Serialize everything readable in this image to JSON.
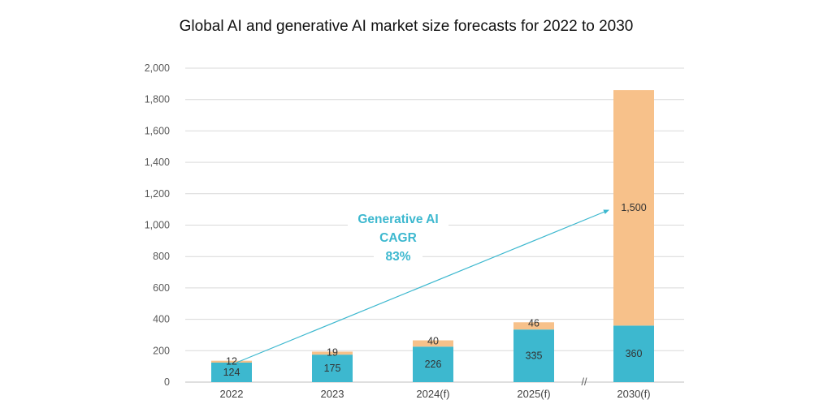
{
  "chart_data": {
    "type": "bar",
    "stacked": true,
    "title": "Global AI and generative AI market size forecasts for 2022 to 2030",
    "categories": [
      "2022",
      "2023",
      "2024(f)",
      "2025(f)",
      "2030(f)"
    ],
    "series": [
      {
        "values": [
          124,
          175,
          226,
          335,
          360
        ],
        "color": "#3DB8CF"
      },
      {
        "values": [
          12,
          19,
          40,
          46,
          1500
        ],
        "color": "#F7C18A"
      }
    ],
    "value_labels": [
      [
        "124",
        "175",
        "226",
        "335",
        "360"
      ],
      [
        "12",
        "19",
        "40",
        "46",
        "1,500"
      ]
    ],
    "y_ticks": [
      "0",
      "200",
      "400",
      "600",
      "800",
      "1,000",
      "1,200",
      "1,400",
      "1,600",
      "1,800",
      "2,000"
    ],
    "ylim": [
      0,
      2000
    ],
    "grid": true,
    "legend": "none",
    "axis_break_marker": "//",
    "annotation": {
      "lines": [
        "Generative AI",
        "CAGR",
        "83%"
      ],
      "color": "#3DB8CF"
    }
  }
}
